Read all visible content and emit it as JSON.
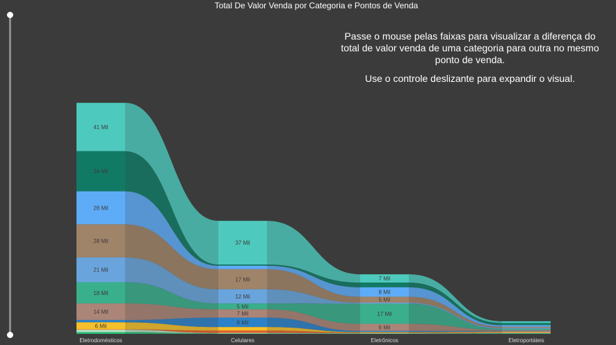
{
  "title": "Total De Valor Venda por Categoria e Pontos de Venda",
  "instructions": {
    "line1": "Passe o mouse pelas faixas para visualizar a diferença do total de valor venda de uma categoria para outra no mesmo ponto de venda.",
    "line2": "Use o controle deslizante para expandir o visual."
  },
  "chart_data": {
    "type": "ribbon",
    "title": "Total De Valor Venda por Categoria e Pontos de Venda",
    "categories": [
      "Eletrodomésticos",
      "Celulares",
      "Eletrônicos",
      "Eletroportáteis"
    ],
    "series": [
      {
        "color": "#4ec9bd",
        "values": [
          41,
          37,
          7,
          1.5
        ],
        "labels": [
          "41 Mil",
          "37 Mil",
          "7 Mil",
          ""
        ]
      },
      {
        "color": "#117a65",
        "values": [
          34,
          1,
          4,
          1.8
        ],
        "labels": [
          "34 Mil",
          "",
          "",
          ""
        ]
      },
      {
        "color": "#5eacf7",
        "values": [
          28,
          3,
          8,
          1.3
        ],
        "labels": [
          "28 Mil",
          "",
          "8 Mil",
          ""
        ]
      },
      {
        "color": "#a08469",
        "values": [
          28,
          17,
          5,
          1.0
        ],
        "labels": [
          "28 Mil",
          "17 Mil",
          "5 Mil",
          ""
        ]
      },
      {
        "color": "#69a5dc",
        "values": [
          21,
          12,
          1,
          0.8
        ],
        "labels": [
          "21 Mil",
          "12 Mil",
          "",
          ""
        ]
      },
      {
        "color": "#3aaf8c",
        "values": [
          18,
          5,
          17,
          0.9
        ],
        "labels": [
          "18 Mil",
          "5 Mil",
          "17 Mil",
          ""
        ]
      },
      {
        "color": "#ab8577",
        "values": [
          14,
          7,
          6,
          0.8
        ],
        "labels": [
          "14 Mil",
          "7 Mil",
          "6 Mil",
          ""
        ]
      },
      {
        "color": "#2c82c9",
        "values": [
          2,
          8,
          1,
          0.6
        ],
        "labels": [
          "",
          "8 Mil",
          "",
          ""
        ]
      },
      {
        "color": "#f5c02b",
        "values": [
          6,
          3,
          0.5,
          0.5
        ],
        "labels": [
          "6 Mil",
          "",
          "",
          ""
        ]
      },
      {
        "color": "#e8642a",
        "values": [
          0.3,
          2,
          0.4,
          0.6
        ],
        "labels": [
          "",
          "",
          "",
          ""
        ]
      },
      {
        "color": "#b6e2c4",
        "values": [
          2,
          0.5,
          0.3,
          0.4
        ],
        "labels": [
          "",
          "",
          "",
          ""
        ]
      },
      {
        "color": "#2dbb72",
        "values": [
          1.5,
          0.3,
          0.3,
          0.5
        ],
        "labels": [
          "",
          "",
          "",
          ""
        ]
      }
    ]
  }
}
